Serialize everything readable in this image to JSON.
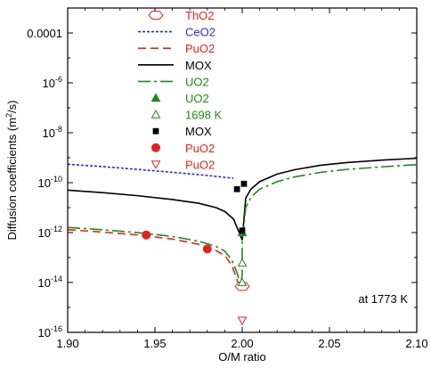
{
  "chart_data": {
    "type": "line",
    "title": "",
    "xlabel": "O/M ratio",
    "ylabel": "Diffusion coefficients (m²/s)",
    "ylabel_base": "Diffusion coefficients (m",
    "ylabel_exp": "2",
    "ylabel_end": "/s)",
    "xlim": [
      1.9,
      2.1
    ],
    "ylim_log10": [
      -16,
      -3
    ],
    "y_scale": "log",
    "grid": false,
    "legend_position": "top-center",
    "annotation": "at 1773 K",
    "x_ticks": [
      {
        "value": 1.9,
        "label": "1.90"
      },
      {
        "value": 1.95,
        "label": "1.95"
      },
      {
        "value": 2.0,
        "label": "2.00"
      },
      {
        "value": 2.05,
        "label": "2.05"
      },
      {
        "value": 2.1,
        "label": "2.10"
      }
    ],
    "y_ticks": [
      {
        "exp": -4,
        "base": "0.0001",
        "sup": ""
      },
      {
        "exp": -6,
        "base": "10",
        "sup": "-6"
      },
      {
        "exp": -8,
        "base": "10",
        "sup": "-8"
      },
      {
        "exp": -10,
        "base": "10",
        "sup": "-10"
      },
      {
        "exp": -12,
        "base": "10",
        "sup": "-12"
      },
      {
        "exp": -14,
        "base": "10",
        "sup": "-14"
      },
      {
        "exp": -16,
        "base": "10",
        "sup": "-16"
      }
    ],
    "series": [
      {
        "name": "ThO2",
        "kind": "marker",
        "marker": "hexagon",
        "color": "#e8231b",
        "points": [
          {
            "x": 2.0,
            "y": 7e-15
          }
        ]
      },
      {
        "name": "CeO2",
        "kind": "line",
        "dash": "3,2",
        "color": "#2a2ad6",
        "points": [
          {
            "x": 1.9,
            "y": 5.5e-10
          },
          {
            "x": 1.92,
            "y": 4.4e-10
          },
          {
            "x": 1.94,
            "y": 3.4e-10
          },
          {
            "x": 1.96,
            "y": 2.6e-10
          },
          {
            "x": 1.98,
            "y": 1.95e-10
          },
          {
            "x": 1.995,
            "y": 1.5e-10
          }
        ]
      },
      {
        "name": "PuO2",
        "kind": "line",
        "dash": "9,5",
        "color": "#e8231b",
        "points": [
          {
            "x": 1.9,
            "y": 1.3e-12
          },
          {
            "x": 1.92,
            "y": 1.05e-12
          },
          {
            "x": 1.94,
            "y": 8e-13
          },
          {
            "x": 1.96,
            "y": 5.5e-13
          },
          {
            "x": 1.975,
            "y": 3.4e-13
          },
          {
            "x": 1.985,
            "y": 1.9e-13
          },
          {
            "x": 1.99,
            "y": 1.2e-13
          },
          {
            "x": 1.994,
            "y": 5e-14
          },
          {
            "x": 1.997,
            "y": 1.3e-14
          },
          {
            "x": 1.9985,
            "y": 6e-15
          }
        ]
      },
      {
        "name": "MOX",
        "kind": "line",
        "dash": "",
        "color": "#000000",
        "points": [
          {
            "x": 1.9,
            "y": 5e-11
          },
          {
            "x": 1.92,
            "y": 4e-11
          },
          {
            "x": 1.94,
            "y": 3e-11
          },
          {
            "x": 1.96,
            "y": 2.1e-11
          },
          {
            "x": 1.975,
            "y": 1.5e-11
          },
          {
            "x": 1.985,
            "y": 1e-11
          },
          {
            "x": 1.99,
            "y": 7e-12
          },
          {
            "x": 1.995,
            "y": 3.5e-12
          },
          {
            "x": 1.998,
            "y": 1.1e-12
          },
          {
            "x": 2.0,
            "y": 5e-13
          },
          {
            "x": 2.002,
            "y": 2.4e-11
          },
          {
            "x": 2.005,
            "y": 5.5e-11
          },
          {
            "x": 2.01,
            "y": 1.1e-10
          },
          {
            "x": 2.02,
            "y": 2.2e-10
          },
          {
            "x": 2.03,
            "y": 3.3e-10
          },
          {
            "x": 2.045,
            "y": 5e-10
          },
          {
            "x": 2.06,
            "y": 6.4e-10
          },
          {
            "x": 2.08,
            "y": 8e-10
          },
          {
            "x": 2.1,
            "y": 9.5e-10
          }
        ]
      },
      {
        "name": "UO2",
        "kind": "line",
        "dash": "14,4,3,4",
        "color": "#1c8a1c",
        "points": [
          {
            "x": 1.9,
            "y": 1.6e-12
          },
          {
            "x": 1.92,
            "y": 1.3e-12
          },
          {
            "x": 1.94,
            "y": 1e-12
          },
          {
            "x": 1.96,
            "y": 7e-13
          },
          {
            "x": 1.975,
            "y": 4.5e-13
          },
          {
            "x": 1.985,
            "y": 2.8e-13
          },
          {
            "x": 1.99,
            "y": 1.8e-13
          },
          {
            "x": 1.994,
            "y": 8e-14
          },
          {
            "x": 1.997,
            "y": 2.5e-14
          },
          {
            "x": 1.999,
            "y": 8e-15
          },
          {
            "x": 2.0,
            "y": 2e-14
          },
          {
            "x": 2.0,
            "y": 4e-13
          },
          {
            "x": 2.002,
            "y": 1e-11
          },
          {
            "x": 2.005,
            "y": 2.6e-11
          },
          {
            "x": 2.01,
            "y": 5.5e-11
          },
          {
            "x": 2.02,
            "y": 1.1e-10
          },
          {
            "x": 2.03,
            "y": 1.7e-10
          },
          {
            "x": 2.045,
            "y": 2.6e-10
          },
          {
            "x": 2.06,
            "y": 3.4e-10
          },
          {
            "x": 2.08,
            "y": 4.3e-10
          },
          {
            "x": 2.1,
            "y": 5.3e-10
          }
        ]
      },
      {
        "name": "UO2",
        "kind": "marker",
        "marker": "triangle-filled",
        "color": "#1c8a1c",
        "points": [
          {
            "x": 2.0,
            "y": 1e-12
          }
        ]
      },
      {
        "name": "1698 K",
        "kind": "marker",
        "marker": "triangle-open",
        "color": "#1c8a1c",
        "points": [
          {
            "x": 2.0,
            "y": 6e-14
          },
          {
            "x": 2.0,
            "y": 1e-14
          }
        ]
      },
      {
        "name": "MOX",
        "kind": "marker",
        "marker": "square",
        "color": "#000000",
        "points": [
          {
            "x": 1.997,
            "y": 5.5e-11
          },
          {
            "x": 2.001,
            "y": 9e-11
          },
          {
            "x": 2.0,
            "y": 1.2e-12
          }
        ]
      },
      {
        "name": "PuO2",
        "kind": "marker",
        "marker": "circle",
        "color": "#e8231b",
        "points": [
          {
            "x": 1.945,
            "y": 8e-13
          },
          {
            "x": 1.98,
            "y": 2.2e-13
          }
        ]
      },
      {
        "name": "PuO2",
        "kind": "marker",
        "marker": "triangle-down-open",
        "color": "#e8231b",
        "points": [
          {
            "x": 2.0,
            "y": 3e-16
          }
        ]
      }
    ]
  }
}
